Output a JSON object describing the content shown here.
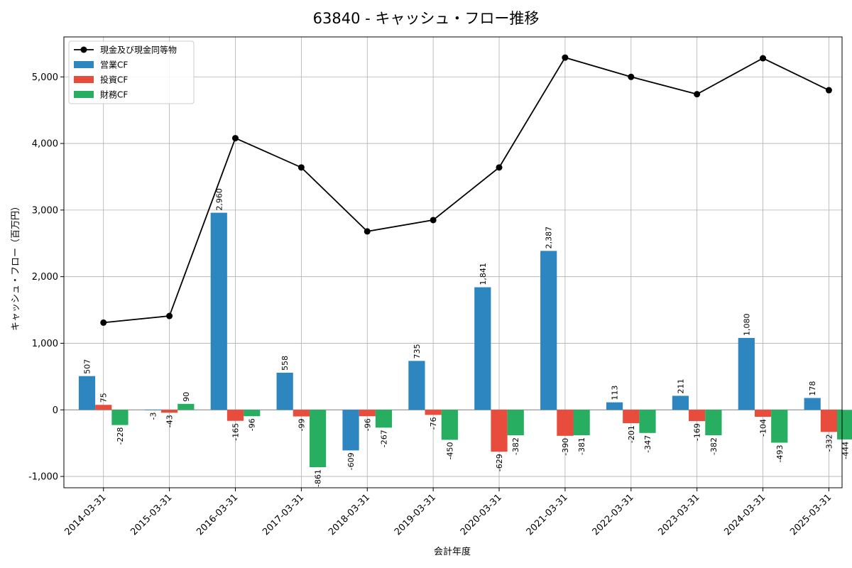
{
  "chart_data": {
    "type": "bar",
    "title": "63840 - キャッシュ・フロー推移",
    "xlabel": "会計年度",
    "ylabel": "キャッシュ・フロー（百万円）",
    "categories": [
      "2014-03-31",
      "2015-03-31",
      "2016-03-31",
      "2017-03-31",
      "2018-03-31",
      "2019-03-31",
      "2020-03-31",
      "2021-03-31",
      "2022-03-31",
      "2023-03-31",
      "2024-03-31",
      "2025-03-31"
    ],
    "ylim": [
      -1170,
      5600
    ],
    "yticks": [
      -1000,
      0,
      1000,
      2000,
      3000,
      4000,
      5000
    ],
    "ytick_labels": [
      "-1,000",
      "0",
      "1,000",
      "2,000",
      "3,000",
      "4,000",
      "5,000"
    ],
    "grid": true,
    "legend_position": "top-left",
    "series": [
      {
        "name": "営業CF",
        "kind": "bar",
        "color": "#2e86c1",
        "values": [
          507,
          -3,
          2960,
          558,
          -609,
          735,
          1841,
          2387,
          113,
          211,
          1080,
          178
        ],
        "labels": [
          "507",
          "-3",
          "2,960",
          "558",
          "-609",
          "735",
          "1,841",
          "2,387",
          "113",
          "211",
          "1,080",
          "178"
        ]
      },
      {
        "name": "投資CF",
        "kind": "bar",
        "color": "#e74c3c",
        "values": [
          75,
          -43,
          -165,
          -99,
          -96,
          -76,
          -629,
          -390,
          -201,
          -169,
          -104,
          -332
        ],
        "labels": [
          "75",
          "-43",
          "-165",
          "-99",
          "-96",
          "-76",
          "-629",
          "-390",
          "-201",
          "-169",
          "-104",
          "-332"
        ]
      },
      {
        "name": "財務CF",
        "kind": "bar",
        "color": "#27ae60",
        "values": [
          -228,
          90,
          -96,
          -861,
          -267,
          -450,
          -382,
          -381,
          -347,
          -382,
          -493,
          -444
        ],
        "labels": [
          "-228",
          "90",
          "-96",
          "-861",
          "-267",
          "-450",
          "-382",
          "-381",
          "-347",
          "-382",
          "-493",
          "-444"
        ]
      },
      {
        "name": "現金及び現金同等物",
        "kind": "line",
        "color": "#000000",
        "values": [
          1310,
          1410,
          4080,
          3640,
          2680,
          2850,
          3640,
          5290,
          5000,
          4740,
          5280,
          4800
        ]
      }
    ]
  }
}
